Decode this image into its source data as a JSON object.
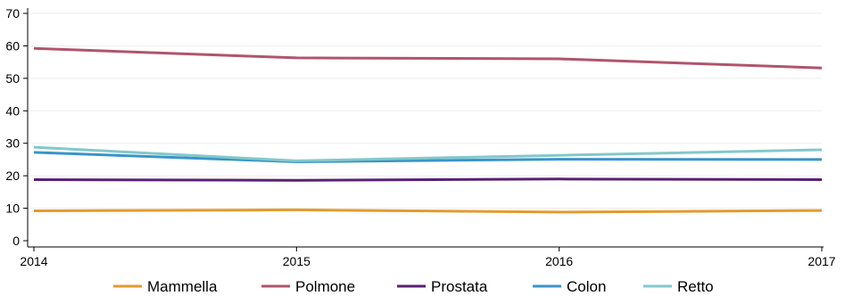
{
  "chart_data": {
    "type": "line",
    "title": "",
    "xlabel": "",
    "ylabel": "",
    "x": [
      "2014",
      "2015",
      "2016",
      "2017"
    ],
    "ylim": [
      0,
      70
    ],
    "yticks": [
      0,
      10,
      20,
      30,
      40,
      50,
      60,
      70
    ],
    "grid": true,
    "legend": "bottom",
    "series": [
      {
        "name": "Mammella",
        "color": "#e59a2b",
        "values": [
          9.2,
          9.5,
          8.8,
          9.3
        ]
      },
      {
        "name": "Polmone",
        "color": "#b0546e",
        "values": [
          59.2,
          56.3,
          56.0,
          53.2
        ]
      },
      {
        "name": "Prostata",
        "color": "#5a2075",
        "values": [
          18.8,
          18.6,
          19.0,
          18.8
        ]
      },
      {
        "name": "Colon",
        "color": "#3a94c8",
        "values": [
          27.2,
          24.3,
          25.1,
          25.0
        ]
      },
      {
        "name": "Retto",
        "color": "#82c8cb",
        "values": [
          28.8,
          24.6,
          26.3,
          28.0
        ]
      }
    ]
  }
}
